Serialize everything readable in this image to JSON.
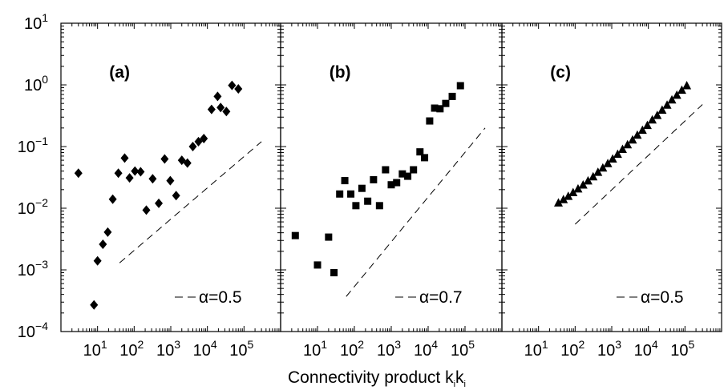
{
  "chart_data": {
    "type": "scatter",
    "xlabel": "Connectivity product k",
    "xlabel_sub_i": "i",
    "xlabel_k": "k",
    "xlabel_sub_j": "i",
    "xscale": "log",
    "yscale": "log",
    "xlim": [
      1,
      1000000
    ],
    "ylim": [
      0.0001,
      10
    ],
    "grid": false,
    "y_ticks": [
      {
        "value": 0.0001,
        "base": "10",
        "exp": "−4"
      },
      {
        "value": 0.001,
        "base": "10",
        "exp": "−3"
      },
      {
        "value": 0.01,
        "base": "10",
        "exp": "−2"
      },
      {
        "value": 0.1,
        "base": "10",
        "exp": "−1"
      },
      {
        "value": 1,
        "base": "10",
        "exp": "0"
      },
      {
        "value": 10,
        "base": "10",
        "exp": "1"
      }
    ],
    "x_ticks": [
      {
        "value": 10,
        "base": "10",
        "exp": "1"
      },
      {
        "value": 100,
        "base": "10",
        "exp": "2"
      },
      {
        "value": 1000,
        "base": "10",
        "exp": "3"
      },
      {
        "value": 10000,
        "base": "10",
        "exp": "4"
      },
      {
        "value": 100000,
        "base": "10",
        "exp": "5"
      }
    ],
    "panels": [
      {
        "label": "(a)",
        "marker": "diamond",
        "legend": "α=0.5",
        "fit_line": {
          "x": [
            40,
            300000
          ],
          "y": [
            0.0013,
            0.12
          ]
        },
        "points": [
          [
            3,
            0.037
          ],
          [
            8,
            0.00027
          ],
          [
            10,
            0.0014
          ],
          [
            14,
            0.0026
          ],
          [
            19,
            0.0041
          ],
          [
            26,
            0.014
          ],
          [
            37,
            0.037
          ],
          [
            55,
            0.065
          ],
          [
            75,
            0.031
          ],
          [
            105,
            0.04
          ],
          [
            150,
            0.039
          ],
          [
            215,
            0.0093
          ],
          [
            320,
            0.03
          ],
          [
            470,
            0.012
          ],
          [
            680,
            0.063
          ],
          [
            970,
            0.028
          ],
          [
            1400,
            0.016
          ],
          [
            2000,
            0.06
          ],
          [
            2850,
            0.054
          ],
          [
            4000,
            0.1
          ],
          [
            5700,
            0.12
          ],
          [
            8000,
            0.135
          ],
          [
            13000,
            0.4
          ],
          [
            19000,
            0.65
          ],
          [
            23000,
            0.43
          ],
          [
            33000,
            0.37
          ],
          [
            47000,
            0.98
          ],
          [
            70000,
            0.86
          ]
        ]
      },
      {
        "label": "(b)",
        "marker": "square",
        "legend": "α=0.7",
        "fit_line": {
          "x": [
            60,
            350000
          ],
          "y": [
            0.00037,
            0.2
          ]
        },
        "points": [
          [
            2.5,
            0.0036
          ],
          [
            10,
            0.0012
          ],
          [
            20,
            0.0034
          ],
          [
            28,
            0.0009
          ],
          [
            40,
            0.017
          ],
          [
            55,
            0.028
          ],
          [
            80,
            0.017
          ],
          [
            110,
            0.011
          ],
          [
            160,
            0.021
          ],
          [
            230,
            0.013
          ],
          [
            330,
            0.029
          ],
          [
            480,
            0.011
          ],
          [
            700,
            0.042
          ],
          [
            1000,
            0.024
          ],
          [
            1400,
            0.026
          ],
          [
            2000,
            0.036
          ],
          [
            2800,
            0.033
          ],
          [
            4000,
            0.042
          ],
          [
            6000,
            0.082
          ],
          [
            8000,
            0.066
          ],
          [
            11000,
            0.26
          ],
          [
            15000,
            0.42
          ],
          [
            21000,
            0.41
          ],
          [
            30000,
            0.5
          ],
          [
            45000,
            0.65
          ],
          [
            75000,
            0.97
          ]
        ]
      },
      {
        "label": "(c)",
        "marker": "triangle",
        "legend": "α=0.5",
        "fit_line": {
          "x": [
            100,
            300000
          ],
          "y": [
            0.0055,
            0.48
          ]
        },
        "points": [
          [
            35,
            0.0122
          ],
          [
            48,
            0.0138
          ],
          [
            65,
            0.0156
          ],
          [
            88,
            0.0179
          ],
          [
            120,
            0.0206
          ],
          [
            165,
            0.0238
          ],
          [
            225,
            0.0277
          ],
          [
            310,
            0.0324
          ],
          [
            420,
            0.0382
          ],
          [
            570,
            0.045
          ],
          [
            780,
            0.053
          ],
          [
            1060,
            0.063
          ],
          [
            1450,
            0.075
          ],
          [
            1970,
            0.09
          ],
          [
            2700,
            0.107
          ],
          [
            3700,
            0.128
          ],
          [
            5000,
            0.153
          ],
          [
            6900,
            0.184
          ],
          [
            9400,
            0.22
          ],
          [
            12800,
            0.27
          ],
          [
            17500,
            0.32
          ],
          [
            23800,
            0.39
          ],
          [
            32500,
            0.47
          ],
          [
            44000,
            0.57
          ],
          [
            60000,
            0.68
          ],
          [
            82000,
            0.82
          ],
          [
            112000,
            0.97
          ]
        ]
      }
    ]
  }
}
